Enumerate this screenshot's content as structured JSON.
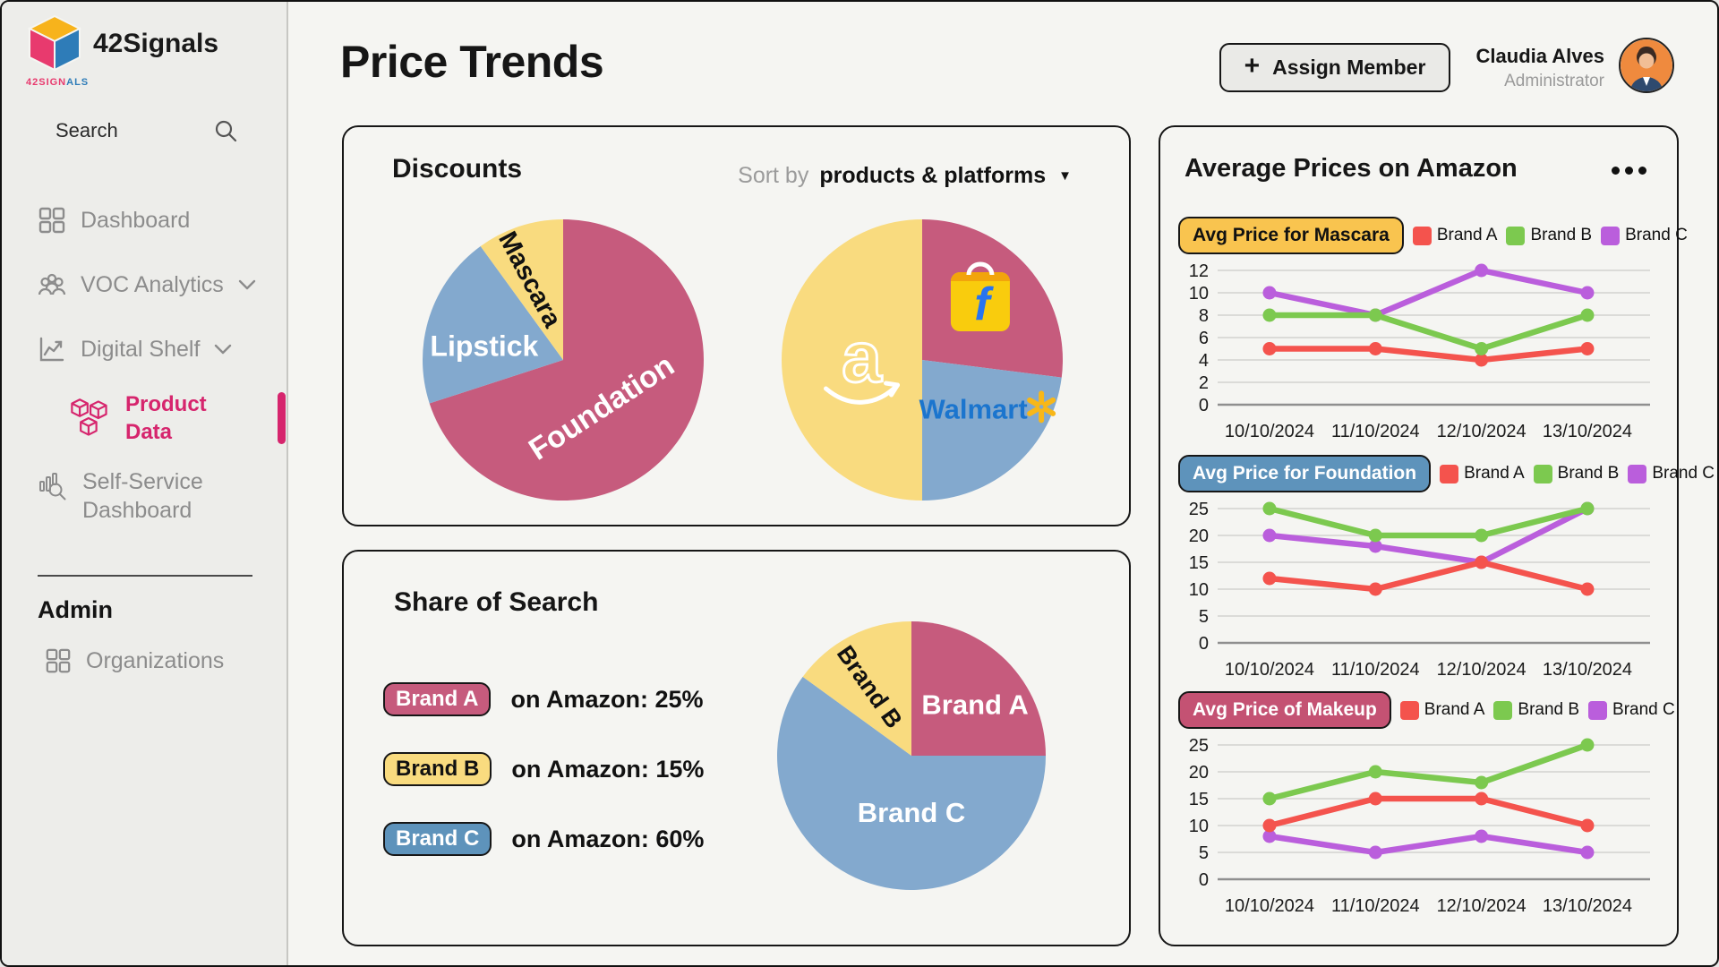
{
  "app": {
    "name": "42Signals",
    "logo_word_left": "42SIGN",
    "logo_word_right": "ALS"
  },
  "sidebar": {
    "search": {
      "placeholder": "Search"
    },
    "items": [
      {
        "label": "Dashboard"
      },
      {
        "label": "VOC Analytics"
      },
      {
        "label": "Digital Shelf"
      },
      {
        "label": "Product Data"
      },
      {
        "label": "Self-Service Dashboard"
      }
    ],
    "admin_heading": "Admin",
    "organizations_label": "Organizations"
  },
  "header": {
    "title": "Price Trends",
    "assign_plus": "+",
    "assign_member_label": "Assign Member",
    "user_name": "Claudia Alves",
    "user_role": "Administrator"
  },
  "discounts": {
    "title": "Discounts",
    "sort_by_label": "Sort by",
    "sort_value": "products & platforms",
    "dropdown_arrow": "▼"
  },
  "share": {
    "title": "Share of Search",
    "rows": [
      {
        "badge": "Brand A",
        "badge_bg": "#C65B7D",
        "badge_fg": "#FFFFFF",
        "text": "on Amazon: 25%"
      },
      {
        "badge": "Brand B",
        "badge_bg": "#F9DB7F",
        "badge_fg": "#111111",
        "text": "on Amazon: 15%"
      },
      {
        "badge": "Brand C",
        "badge_bg": "#5E93BB",
        "badge_fg": "#FFFFFF",
        "text": "on Amazon: 60%"
      }
    ]
  },
  "avg_card": {
    "title": "Average Prices on Amazon",
    "legend": [
      {
        "name": "Brand A",
        "color": "#F4534D"
      },
      {
        "name": "Brand B",
        "color": "#7CC94F"
      },
      {
        "name": "Brand C",
        "color": "#BA5EDC"
      }
    ]
  },
  "chart_data": [
    {
      "type": "pie",
      "name": "discounts-by-product",
      "slices": [
        {
          "label": "Foundation",
          "value": 70,
          "color": "#C65B7D",
          "label_style": {
            "color": "#FFFFFF",
            "size": 34,
            "rot": -33,
            "a": 141,
            "rf": 0.43
          }
        },
        {
          "label": "Lipstick",
          "value": 20,
          "color": "#83A9CE",
          "label_style": {
            "color": "#FFFFFF",
            "size": 32,
            "rot": 0,
            "a": 280,
            "rf": 0.57
          }
        },
        {
          "label": "Mascara",
          "value": 10,
          "color": "#F9DB7F",
          "label_style": {
            "color": "#111111",
            "size": 29,
            "rot": 62,
            "a": 338,
            "rf": 0.62
          }
        }
      ]
    },
    {
      "type": "pie",
      "name": "discounts-by-platform",
      "slices": [
        {
          "label": "Flipkart",
          "value": 27,
          "color": "#C65B7D",
          "logo": "flipkart",
          "logo_pos": {
            "a": 45,
            "rf": 0.585
          }
        },
        {
          "label": "Walmart",
          "value": 23,
          "color": "#83A9CE",
          "logo": "walmart",
          "logo_pos": {
            "a": 129,
            "rf": 0.55
          }
        },
        {
          "label": "Amazon",
          "value": 50,
          "color": "#F9DB7F",
          "logo": "amazon",
          "logo_pos": {
            "a": 270,
            "rf": 0.43
          }
        }
      ]
    },
    {
      "type": "pie",
      "name": "share-of-search-on-amazon",
      "slices": [
        {
          "label": "Brand A",
          "value": 25,
          "color": "#C65B7D",
          "label_style": {
            "color": "#FFFFFF",
            "size": 31,
            "rot": 0,
            "a": 51,
            "rf": 0.61
          }
        },
        {
          "label": "Brand C",
          "value": 60,
          "color": "#83A9CE",
          "label_style": {
            "color": "#FFFFFF",
            "size": 31,
            "rot": 0,
            "a": 180,
            "rf": 0.42
          }
        },
        {
          "label": "Brand B",
          "value": 15,
          "color": "#F9DB7F",
          "label_style": {
            "color": "#111111",
            "size": 27,
            "rot": 55,
            "a": 329,
            "rf": 0.6
          }
        }
      ]
    },
    {
      "type": "line",
      "badge": {
        "text": "Avg Price for Mascara",
        "bg": "#F9C44F",
        "fg": "#111111"
      },
      "x": [
        "10/10/2024",
        "11/10/2024",
        "12/10/2024",
        "13/10/2024"
      ],
      "ylim": [
        0,
        12
      ],
      "yticks": [
        0,
        2,
        4,
        6,
        8,
        10,
        12
      ],
      "series": [
        {
          "name": "Brand A",
          "color": "#F4534D",
          "values": [
            5,
            5,
            4,
            5
          ]
        },
        {
          "name": "Brand B",
          "color": "#7CC94F",
          "values": [
            8,
            8,
            5,
            8
          ]
        },
        {
          "name": "Brand C",
          "color": "#BA5EDC",
          "values": [
            10,
            8,
            12,
            10
          ]
        }
      ]
    },
    {
      "type": "line",
      "badge": {
        "text": "Avg Price for Foundation",
        "bg": "#5E93BB",
        "fg": "#FFFFFF"
      },
      "x": [
        "10/10/2024",
        "11/10/2024",
        "12/10/2024",
        "13/10/2024"
      ],
      "ylim": [
        0,
        25
      ],
      "yticks": [
        0,
        5,
        10,
        15,
        20,
        25
      ],
      "series": [
        {
          "name": "Brand A",
          "color": "#F4534D",
          "values": [
            12,
            10,
            15,
            10
          ]
        },
        {
          "name": "Brand B",
          "color": "#7CC94F",
          "values": [
            25,
            20,
            20,
            25
          ]
        },
        {
          "name": "Brand C",
          "color": "#BA5EDC",
          "values": [
            20,
            18,
            15,
            25
          ]
        }
      ]
    },
    {
      "type": "line",
      "badge": {
        "text": "Avg Price of Makeup",
        "bg": "#C45273",
        "fg": "#FFFFFF"
      },
      "x": [
        "10/10/2024",
        "11/10/2024",
        "12/10/2024",
        "13/10/2024"
      ],
      "ylim": [
        0,
        25
      ],
      "yticks": [
        0,
        5,
        10,
        15,
        20,
        25
      ],
      "series": [
        {
          "name": "Brand A",
          "color": "#F4534D",
          "values": [
            10,
            15,
            15,
            10
          ]
        },
        {
          "name": "Brand B",
          "color": "#7CC94F",
          "values": [
            15,
            20,
            18,
            25
          ]
        },
        {
          "name": "Brand C",
          "color": "#BA5EDC",
          "values": [
            8,
            5,
            8,
            5
          ]
        }
      ]
    }
  ]
}
